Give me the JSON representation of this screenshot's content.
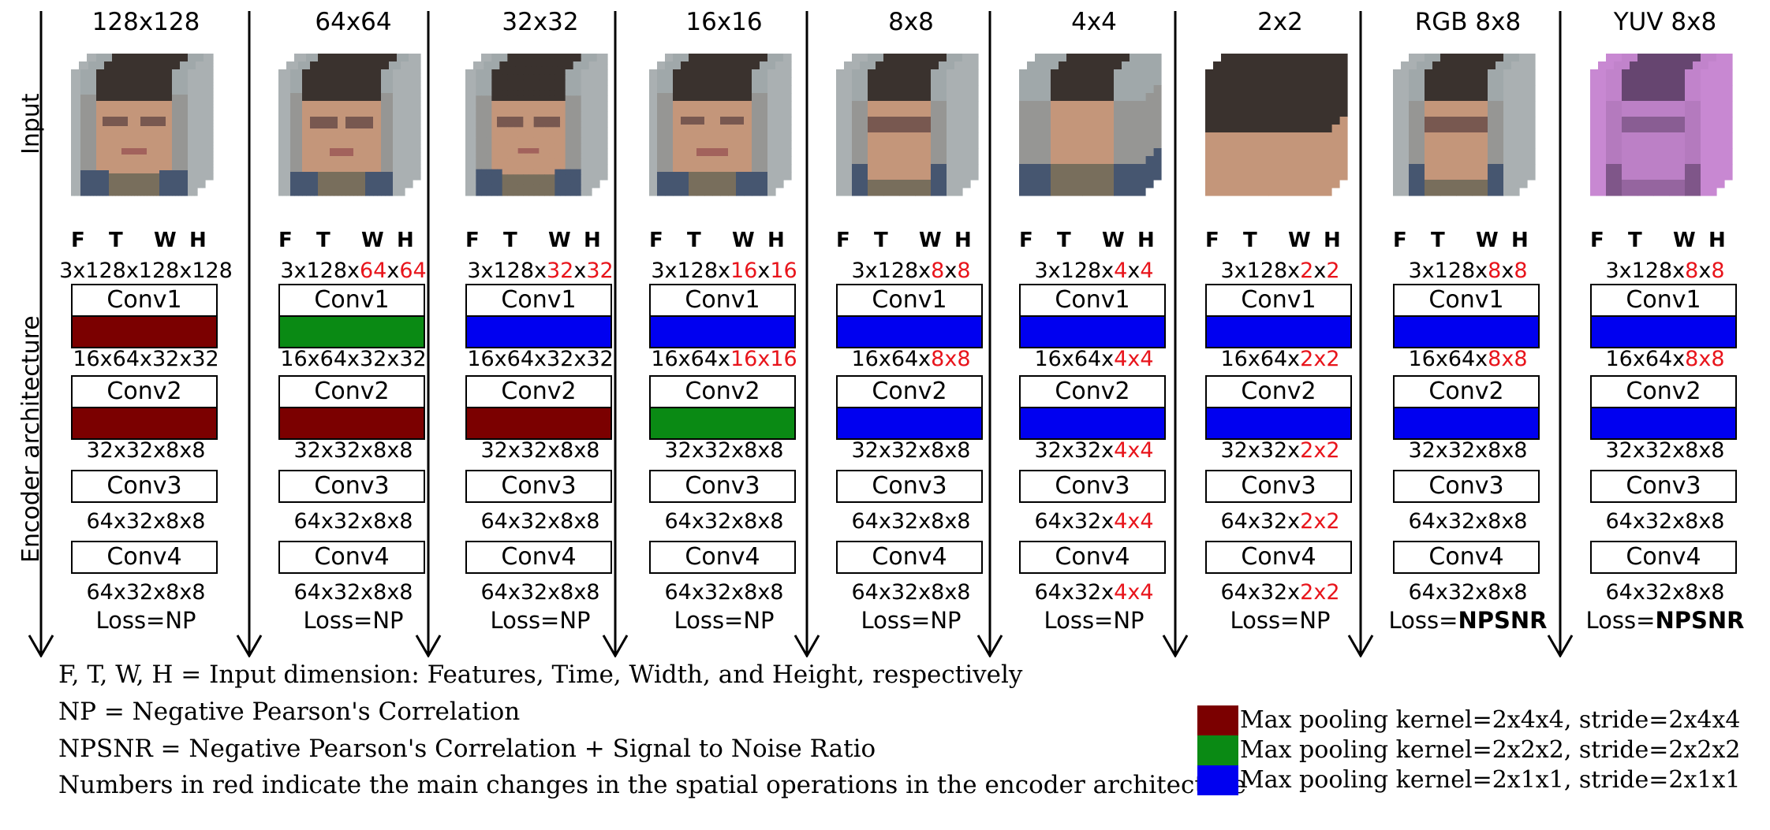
{
  "row_labels": {
    "input": "Input",
    "encoder": "Encoder architecture"
  },
  "colors": {
    "dark_red": "#7b0000",
    "green": "#0a8a14",
    "blue": "#0000f0",
    "red_text": "#e8141b"
  },
  "header": [
    "F",
    "T",
    "W",
    "H"
  ],
  "columns": [
    {
      "title": "128x128",
      "image": "face-128",
      "input_dim": [
        {
          "t": "3x128x128x128",
          "r": false
        }
      ],
      "conv1": {
        "label": "Conv1",
        "pool": "dark_red"
      },
      "after_conv1": [
        {
          "t": "16x64x32x32",
          "r": false
        }
      ],
      "conv2": {
        "label": "Conv2",
        "pool": "dark_red"
      },
      "after_conv2": [
        {
          "t": "32x32x8x8",
          "r": false
        }
      ],
      "conv3": {
        "label": "Conv3"
      },
      "after_conv3": [
        {
          "t": "64x32x8x8",
          "r": false
        }
      ],
      "conv4": {
        "label": "Conv4"
      },
      "after_conv4": [
        {
          "t": "64x32x8x8",
          "r": false
        }
      ],
      "loss_prefix": "Loss=",
      "loss": "NP",
      "loss_bold": false
    },
    {
      "title": "64x64",
      "image": "face-64",
      "input_dim": [
        {
          "t": "3x128x",
          "r": false
        },
        {
          "t": "64",
          "r": true
        },
        {
          "t": "x",
          "r": false
        },
        {
          "t": "64",
          "r": true
        }
      ],
      "conv1": {
        "label": "Conv1",
        "pool": "green"
      },
      "after_conv1": [
        {
          "t": "16x64x32x32",
          "r": false
        }
      ],
      "conv2": {
        "label": "Conv2",
        "pool": "dark_red"
      },
      "after_conv2": [
        {
          "t": "32x32x8x8",
          "r": false
        }
      ],
      "conv3": {
        "label": "Conv3"
      },
      "after_conv3": [
        {
          "t": "64x32x8x8",
          "r": false
        }
      ],
      "conv4": {
        "label": "Conv4"
      },
      "after_conv4": [
        {
          "t": "64x32x8x8",
          "r": false
        }
      ],
      "loss_prefix": "Loss=",
      "loss": "NP",
      "loss_bold": false
    },
    {
      "title": "32x32",
      "image": "face-32",
      "input_dim": [
        {
          "t": "3x128x",
          "r": false
        },
        {
          "t": "32",
          "r": true
        },
        {
          "t": "x",
          "r": false
        },
        {
          "t": "32",
          "r": true
        }
      ],
      "conv1": {
        "label": "Conv1",
        "pool": "blue"
      },
      "after_conv1": [
        {
          "t": "16x64x32x32",
          "r": false
        }
      ],
      "conv2": {
        "label": "Conv2",
        "pool": "dark_red"
      },
      "after_conv2": [
        {
          "t": "32x32x8x8",
          "r": false
        }
      ],
      "conv3": {
        "label": "Conv3"
      },
      "after_conv3": [
        {
          "t": "64x32x8x8",
          "r": false
        }
      ],
      "conv4": {
        "label": "Conv4"
      },
      "after_conv4": [
        {
          "t": "64x32x8x8",
          "r": false
        }
      ],
      "loss_prefix": "Loss=",
      "loss": "NP",
      "loss_bold": false
    },
    {
      "title": "16x16",
      "image": "face-16",
      "input_dim": [
        {
          "t": "3x128x",
          "r": false
        },
        {
          "t": "16",
          "r": true
        },
        {
          "t": "x",
          "r": false
        },
        {
          "t": "16",
          "r": true
        }
      ],
      "conv1": {
        "label": "Conv1",
        "pool": "blue"
      },
      "after_conv1": [
        {
          "t": "16x64x",
          "r": false
        },
        {
          "t": "16x16",
          "r": true
        }
      ],
      "conv2": {
        "label": "Conv2",
        "pool": "green"
      },
      "after_conv2": [
        {
          "t": "32x32x8x8",
          "r": false
        }
      ],
      "conv3": {
        "label": "Conv3"
      },
      "after_conv3": [
        {
          "t": "64x32x8x8",
          "r": false
        }
      ],
      "conv4": {
        "label": "Conv4"
      },
      "after_conv4": [
        {
          "t": "64x32x8x8",
          "r": false
        }
      ],
      "loss_prefix": "Loss=",
      "loss": "NP",
      "loss_bold": false
    },
    {
      "title": "8x8",
      "image": "face-8",
      "input_dim": [
        {
          "t": "3x128x",
          "r": false
        },
        {
          "t": "8",
          "r": true
        },
        {
          "t": "x",
          "r": false
        },
        {
          "t": "8",
          "r": true
        }
      ],
      "conv1": {
        "label": "Conv1",
        "pool": "blue"
      },
      "after_conv1": [
        {
          "t": "16x64x",
          "r": false
        },
        {
          "t": "8x8",
          "r": true
        }
      ],
      "conv2": {
        "label": "Conv2",
        "pool": "blue"
      },
      "after_conv2": [
        {
          "t": "32x32x8x8",
          "r": false
        }
      ],
      "conv3": {
        "label": "Conv3"
      },
      "after_conv3": [
        {
          "t": "64x32x8x8",
          "r": false
        }
      ],
      "conv4": {
        "label": "Conv4"
      },
      "after_conv4": [
        {
          "t": "64x32x8x8",
          "r": false
        }
      ],
      "loss_prefix": "Loss=",
      "loss": "NP",
      "loss_bold": false
    },
    {
      "title": "4x4",
      "image": "face-4",
      "input_dim": [
        {
          "t": "3x128x",
          "r": false
        },
        {
          "t": "4",
          "r": true
        },
        {
          "t": "x",
          "r": false
        },
        {
          "t": "4",
          "r": true
        }
      ],
      "conv1": {
        "label": "Conv1",
        "pool": "blue"
      },
      "after_conv1": [
        {
          "t": "16x64x",
          "r": false
        },
        {
          "t": "4x4",
          "r": true
        }
      ],
      "conv2": {
        "label": "Conv2",
        "pool": "blue"
      },
      "after_conv2": [
        {
          "t": "32x32x",
          "r": false
        },
        {
          "t": "4x4",
          "r": true
        }
      ],
      "conv3": {
        "label": "Conv3"
      },
      "after_conv3": [
        {
          "t": "64x32x",
          "r": false
        },
        {
          "t": "4x4",
          "r": true
        }
      ],
      "conv4": {
        "label": "Conv4"
      },
      "after_conv4": [
        {
          "t": "64x32x",
          "r": false
        },
        {
          "t": "4x4",
          "r": true
        }
      ],
      "loss_prefix": "Loss=",
      "loss": "NP",
      "loss_bold": false
    },
    {
      "title": "2x2",
      "image": "face-2",
      "input_dim": [
        {
          "t": "3x128x",
          "r": false
        },
        {
          "t": "2",
          "r": true
        },
        {
          "t": "x",
          "r": false
        },
        {
          "t": "2",
          "r": true
        }
      ],
      "conv1": {
        "label": "Conv1",
        "pool": "blue"
      },
      "after_conv1": [
        {
          "t": "16x64x",
          "r": false
        },
        {
          "t": "2x2",
          "r": true
        }
      ],
      "conv2": {
        "label": "Conv2",
        "pool": "blue"
      },
      "after_conv2": [
        {
          "t": "32x32x",
          "r": false
        },
        {
          "t": "2x2",
          "r": true
        }
      ],
      "conv3": {
        "label": "Conv3"
      },
      "after_conv3": [
        {
          "t": "64x32x",
          "r": false
        },
        {
          "t": "2x2",
          "r": true
        }
      ],
      "conv4": {
        "label": "Conv4"
      },
      "after_conv4": [
        {
          "t": "64x32x",
          "r": false
        },
        {
          "t": "2x2",
          "r": true
        }
      ],
      "loss_prefix": "Loss=",
      "loss": "NP",
      "loss_bold": false
    },
    {
      "title": "RGB 8x8",
      "image": "face-rgb-8",
      "input_dim": [
        {
          "t": "3x128x",
          "r": false
        },
        {
          "t": "8",
          "r": true
        },
        {
          "t": "x",
          "r": false
        },
        {
          "t": "8",
          "r": true
        }
      ],
      "conv1": {
        "label": "Conv1",
        "pool": "blue"
      },
      "after_conv1": [
        {
          "t": "16x64x",
          "r": false
        },
        {
          "t": "8x8",
          "r": true
        }
      ],
      "conv2": {
        "label": "Conv2",
        "pool": "blue"
      },
      "after_conv2": [
        {
          "t": "32x32x8x8",
          "r": false
        }
      ],
      "conv3": {
        "label": "Conv3"
      },
      "after_conv3": [
        {
          "t": "64x32x8x8",
          "r": false
        }
      ],
      "conv4": {
        "label": "Conv4"
      },
      "after_conv4": [
        {
          "t": "64x32x8x8",
          "r": false
        }
      ],
      "loss_prefix": "Loss=",
      "loss": "NPSNR",
      "loss_bold": true
    },
    {
      "title": "YUV 8x8",
      "image": "face-yuv-8",
      "input_dim": [
        {
          "t": "3x128x",
          "r": false
        },
        {
          "t": "8",
          "r": true
        },
        {
          "t": "x",
          "r": false
        },
        {
          "t": "8",
          "r": true
        }
      ],
      "conv1": {
        "label": "Conv1",
        "pool": "blue"
      },
      "after_conv1": [
        {
          "t": "16x64x",
          "r": false
        },
        {
          "t": "8x8",
          "r": true
        }
      ],
      "conv2": {
        "label": "Conv2",
        "pool": "blue"
      },
      "after_conv2": [
        {
          "t": "32x32x8x8",
          "r": false
        }
      ],
      "conv3": {
        "label": "Conv3"
      },
      "after_conv3": [
        {
          "t": "64x32x8x8",
          "r": false
        }
      ],
      "conv4": {
        "label": "Conv4"
      },
      "after_conv4": [
        {
          "t": "64x32x8x8",
          "r": false
        }
      ],
      "loss_prefix": "Loss=",
      "loss": "NPSNR",
      "loss_bold": true
    }
  ],
  "notes": [
    "F, T, W, H = Input dimension: Features, Time, Width, and Height, respectively",
    "NP = Negative Pearson's Correlation",
    "NPSNR = Negative Pearson's Correlation + Signal to Noise Ratio",
    "Numbers in red indicate the main changes in the spatial operations in the encoder architecture"
  ],
  "legend": [
    {
      "color": "dark_red",
      "text": "Max pooling kernel=2x4x4, stride=2x4x4"
    },
    {
      "color": "green",
      "text": "Max pooling kernel=2x2x2, stride=2x2x2"
    },
    {
      "color": "blue",
      "text": "Max pooling kernel=2x1x1, stride=2x1x1"
    }
  ]
}
